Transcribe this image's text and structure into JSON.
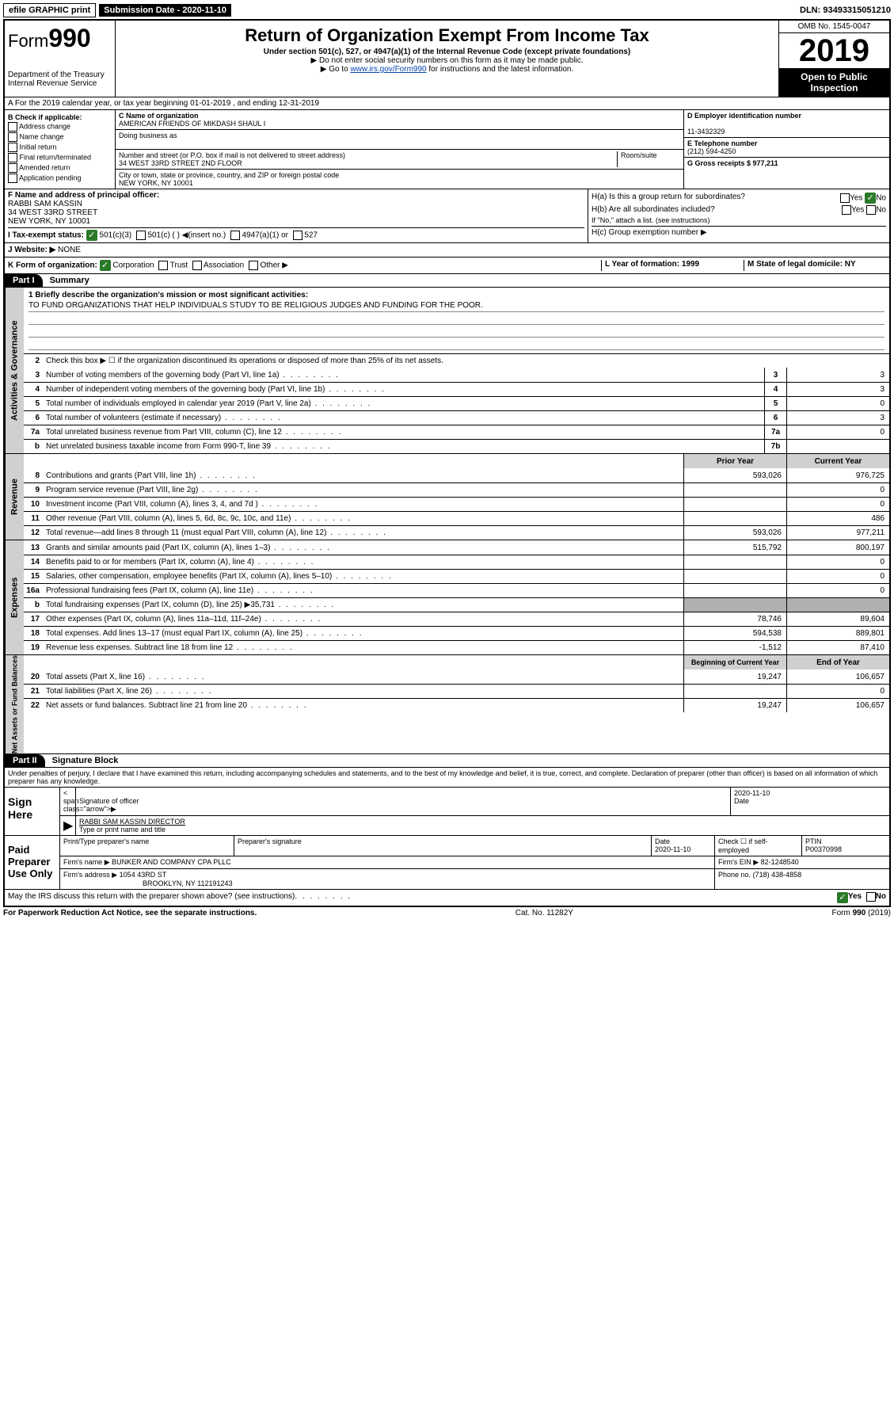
{
  "top": {
    "efile": "efile GRAPHIC print",
    "submission": "Submission Date - 2020-11-10",
    "dln": "DLN: 93493315051210"
  },
  "header": {
    "form_prefix": "Form",
    "form_num": "990",
    "dept": "Department of the Treasury",
    "irs": "Internal Revenue Service",
    "title": "Return of Organization Exempt From Income Tax",
    "subtitle": "Under section 501(c), 527, or 4947(a)(1) of the Internal Revenue Code (except private foundations)",
    "note1": "▶ Do not enter social security numbers on this form as it may be made public.",
    "note2_pre": "▶ Go to ",
    "note2_link": "www.irs.gov/Form990",
    "note2_post": " for instructions and the latest information.",
    "omb": "OMB No. 1545-0047",
    "year": "2019",
    "open": "Open to Public Inspection"
  },
  "rowA": "A For the 2019 calendar year, or tax year beginning 01-01-2019    , and ending 12-31-2019",
  "boxB": {
    "label": "B Check if applicable:",
    "items": [
      "Address change",
      "Name change",
      "Initial return",
      "Final return/terminated",
      "Amended return",
      "Application pending"
    ]
  },
  "boxC": {
    "name_label": "C Name of organization",
    "name": "AMERICAN FRIENDS OF MIKDASH SHAUL I",
    "dba_label": "Doing business as",
    "dba": "",
    "addr_label": "Number and street (or P.O. box if mail is not delivered to street address)",
    "room_label": "Room/suite",
    "addr": "34 WEST 33RD STREET 2ND FLOOR",
    "city_label": "City or town, state or province, country, and ZIP or foreign postal code",
    "city": "NEW YORK, NY  10001"
  },
  "boxD": {
    "ein_label": "D Employer identification number",
    "ein": "11-3432329",
    "phone_label": "E Telephone number",
    "phone": "(212) 594-4250",
    "gross_label": "G Gross receipts $ 977,211"
  },
  "boxF": {
    "label": "F  Name and address of principal officer:",
    "name": "RABBI SAM KASSIN",
    "addr1": "34 WEST 33RD STREET",
    "addr2": "NEW YORK, NY  10001"
  },
  "boxH": {
    "ha": "H(a)  Is this a group return for subordinates?",
    "hb": "H(b)  Are all subordinates included?",
    "hb_note": "If \"No,\" attach a list. (see instructions)",
    "hc": "H(c)  Group exemption number ▶"
  },
  "rowI": {
    "label": "I  Tax-exempt status:",
    "opt1": "501(c)(3)",
    "opt2": "501(c) (   ) ◀(insert no.)",
    "opt3": "4947(a)(1) or",
    "opt4": "527"
  },
  "rowJ": {
    "label": "J  Website: ▶",
    "val": "NONE"
  },
  "rowK": {
    "label": "K Form of organization:",
    "opts": [
      "Corporation",
      "Trust",
      "Association",
      "Other ▶"
    ],
    "L": "L Year of formation: 1999",
    "M": "M State of legal domicile: NY"
  },
  "part1": {
    "header": "Part I",
    "title": "Summary",
    "line1_label": "1  Briefly describe the organization's mission or most significant activities:",
    "line1_text": "TO FUND ORGANIZATIONS THAT HELP INDIVIDUALS STUDY TO BE RELIGIOUS JUDGES AND FUNDING FOR THE POOR.",
    "line2": "Check this box ▶ ☐  if the organization discontinued its operations or disposed of more than 25% of its net assets.",
    "vtab1": "Activities & Governance",
    "vtab2": "Revenue",
    "vtab3": "Expenses",
    "vtab4": "Net Assets or Fund Balances",
    "rows_gov": [
      {
        "n": "3",
        "t": "Number of voting members of the governing body (Part VI, line 1a)",
        "b": "3",
        "v": "3"
      },
      {
        "n": "4",
        "t": "Number of independent voting members of the governing body (Part VI, line 1b)",
        "b": "4",
        "v": "3"
      },
      {
        "n": "5",
        "t": "Total number of individuals employed in calendar year 2019 (Part V, line 2a)",
        "b": "5",
        "v": "0"
      },
      {
        "n": "6",
        "t": "Total number of volunteers (estimate if necessary)",
        "b": "6",
        "v": "3"
      },
      {
        "n": "7a",
        "t": "Total unrelated business revenue from Part VIII, column (C), line 12",
        "b": "7a",
        "v": "0"
      },
      {
        "n": "b",
        "t": "Net unrelated business taxable income from Form 990-T, line 39",
        "b": "7b",
        "v": ""
      }
    ],
    "col_prior": "Prior Year",
    "col_current": "Current Year",
    "rows_rev": [
      {
        "n": "8",
        "t": "Contributions and grants (Part VIII, line 1h)",
        "p": "593,026",
        "c": "976,725"
      },
      {
        "n": "9",
        "t": "Program service revenue (Part VIII, line 2g)",
        "p": "",
        "c": "0"
      },
      {
        "n": "10",
        "t": "Investment income (Part VIII, column (A), lines 3, 4, and 7d )",
        "p": "",
        "c": "0"
      },
      {
        "n": "11",
        "t": "Other revenue (Part VIII, column (A), lines 5, 6d, 8c, 9c, 10c, and 11e)",
        "p": "",
        "c": "486"
      },
      {
        "n": "12",
        "t": "Total revenue—add lines 8 through 11 (must equal Part VIII, column (A), line 12)",
        "p": "593,026",
        "c": "977,211"
      }
    ],
    "rows_exp": [
      {
        "n": "13",
        "t": "Grants and similar amounts paid (Part IX, column (A), lines 1–3)",
        "p": "515,792",
        "c": "800,197"
      },
      {
        "n": "14",
        "t": "Benefits paid to or for members (Part IX, column (A), line 4)",
        "p": "",
        "c": "0"
      },
      {
        "n": "15",
        "t": "Salaries, other compensation, employee benefits (Part IX, column (A), lines 5–10)",
        "p": "",
        "c": "0"
      },
      {
        "n": "16a",
        "t": "Professional fundraising fees (Part IX, column (A), line 11e)",
        "p": "",
        "c": "0"
      },
      {
        "n": "b",
        "t": "Total fundraising expenses (Part IX, column (D), line 25) ▶35,731",
        "p": "__shade__",
        "c": "__shade__"
      },
      {
        "n": "17",
        "t": "Other expenses (Part IX, column (A), lines 11a–11d, 11f–24e)",
        "p": "78,746",
        "c": "89,604"
      },
      {
        "n": "18",
        "t": "Total expenses. Add lines 13–17 (must equal Part IX, column (A), line 25)",
        "p": "594,538",
        "c": "889,801"
      },
      {
        "n": "19",
        "t": "Revenue less expenses. Subtract line 18 from line 12",
        "p": "-1,512",
        "c": "87,410"
      }
    ],
    "col_begin": "Beginning of Current Year",
    "col_end": "End of Year",
    "rows_net": [
      {
        "n": "20",
        "t": "Total assets (Part X, line 16)",
        "p": "19,247",
        "c": "106,657"
      },
      {
        "n": "21",
        "t": "Total liabilities (Part X, line 26)",
        "p": "",
        "c": "0"
      },
      {
        "n": "22",
        "t": "Net assets or fund balances. Subtract line 21 from line 20",
        "p": "19,247",
        "c": "106,657"
      }
    ]
  },
  "part2": {
    "header": "Part II",
    "title": "Signature Block",
    "perjury": "Under penalties of perjury, I declare that I have examined this return, including accompanying schedules and statements, and to the best of my knowledge and belief, it is true, correct, and complete. Declaration of preparer (other than officer) is based on all information of which preparer has any knowledge."
  },
  "sign": {
    "label": "Sign Here",
    "sig_officer": "Signature of officer",
    "date": "2020-11-10",
    "date_label": "Date",
    "name": "RABBI SAM KASSIN  DIRECTOR",
    "name_label": "Type or print name and title"
  },
  "paid": {
    "label": "Paid Preparer Use Only",
    "col_name": "Print/Type preparer's name",
    "col_sig": "Preparer's signature",
    "col_date": "Date",
    "date": "2020-11-10",
    "check_label": "Check ☐ if self-employed",
    "ptin_label": "PTIN",
    "ptin": "P00370998",
    "firm_name_label": "Firm's name      ▶",
    "firm_name": "BUNKER AND COMPANY CPA PLLC",
    "firm_ein_label": "Firm's EIN ▶",
    "firm_ein": "82-1248540",
    "firm_addr_label": "Firm's address ▶",
    "firm_addr": "1054 43RD ST",
    "firm_city": "BROOKLYN, NY  112191243",
    "phone_label": "Phone no.",
    "phone": "(718) 438-4858"
  },
  "footer": {
    "discuss": "May the IRS discuss this return with the preparer shown above? (see instructions)",
    "paperwork": "For Paperwork Reduction Act Notice, see the separate instructions.",
    "cat": "Cat. No. 11282Y",
    "form": "Form 990 (2019)"
  },
  "yes": "Yes",
  "no": "No"
}
